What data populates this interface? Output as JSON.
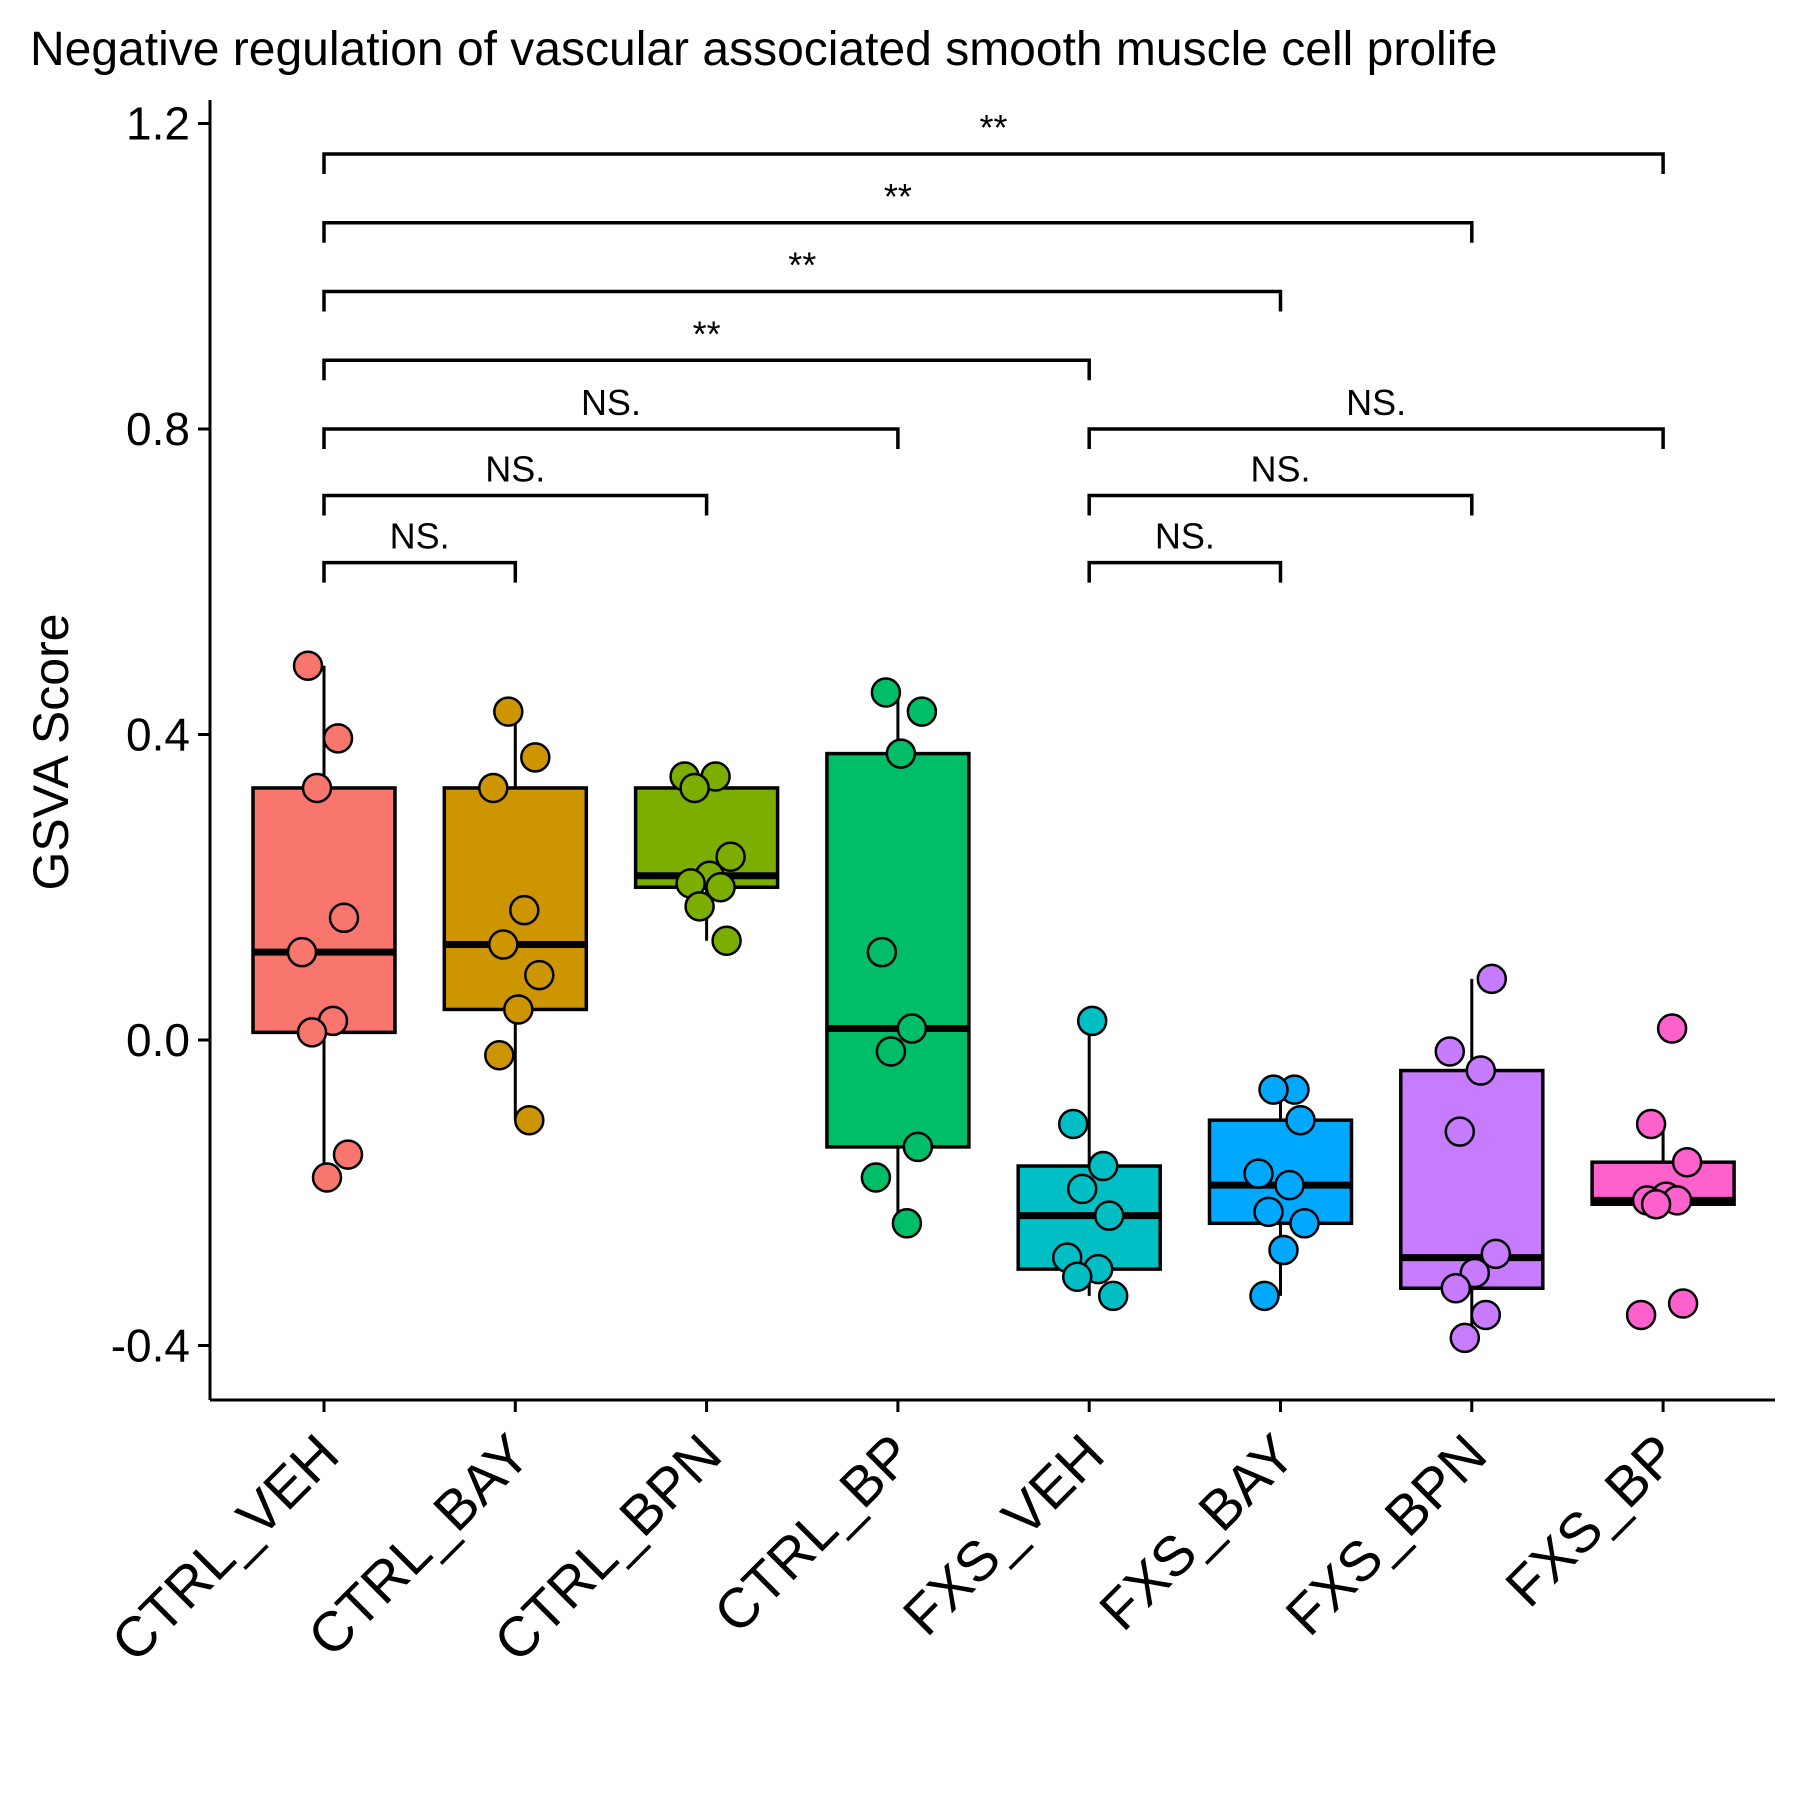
{
  "chart_data": {
    "type": "box",
    "title": "Negative regulation of vascular associated smooth muscle cell prolife",
    "ylabel": "GSVA Score",
    "xlabel": "",
    "ylim": [
      -0.47,
      1.2
    ],
    "yticks": [
      -0.4,
      0.0,
      0.4,
      0.8,
      1.2
    ],
    "ytick_labels": [
      "-0.4",
      "0.0",
      "0.4",
      "0.8",
      "1.2"
    ],
    "grid": false,
    "legend": "none",
    "categories": [
      "CTRL_VEH",
      "CTRL_BAY",
      "CTRL_BPN",
      "CTRL_BP",
      "FXS_VEH",
      "FXS_BAY",
      "FXS_BPN",
      "FXS_BP"
    ],
    "colors": [
      "#F8766D",
      "#CD9600",
      "#7CAE00",
      "#00BE67",
      "#00BFC4",
      "#00A9FF",
      "#C77CFF",
      "#FF61CC"
    ],
    "boxes": [
      {
        "name": "CTRL_VEH",
        "whisker_low": -0.18,
        "q1": 0.01,
        "median": 0.115,
        "q3": 0.33,
        "whisker_high": 0.49
      },
      {
        "name": "CTRL_BAY",
        "whisker_low": -0.105,
        "q1": 0.04,
        "median": 0.125,
        "q3": 0.33,
        "whisker_high": 0.43
      },
      {
        "name": "CTRL_BPN",
        "whisker_low": 0.13,
        "q1": 0.2,
        "median": 0.215,
        "q3": 0.33,
        "whisker_high": 0.345
      },
      {
        "name": "CTRL_BP",
        "whisker_low": -0.24,
        "q1": -0.14,
        "median": 0.015,
        "q3": 0.375,
        "whisker_high": 0.455
      },
      {
        "name": "FXS_VEH",
        "whisker_low": -0.335,
        "q1": -0.3,
        "median": -0.23,
        "q3": -0.165,
        "whisker_high": 0.025
      },
      {
        "name": "FXS_BAY",
        "whisker_low": -0.335,
        "q1": -0.24,
        "median": -0.19,
        "q3": -0.105,
        "whisker_high": -0.065
      },
      {
        "name": "FXS_BPN",
        "whisker_low": -0.39,
        "q1": -0.325,
        "median": -0.285,
        "q3": -0.04,
        "whisker_high": 0.08
      },
      {
        "name": "FXS_BP",
        "whisker_low": -0.215,
        "q1": -0.215,
        "median": -0.21,
        "q3": -0.16,
        "whisker_high": -0.11
      }
    ],
    "points": [
      [
        0.49,
        0.395,
        0.33,
        0.16,
        0.115,
        0.025,
        0.01,
        -0.15,
        -0.18
      ],
      [
        0.43,
        0.37,
        0.33,
        0.17,
        0.125,
        0.085,
        0.04,
        -0.02,
        -0.105
      ],
      [
        0.345,
        0.345,
        0.33,
        0.24,
        0.215,
        0.205,
        0.2,
        0.175,
        0.13
      ],
      [
        0.455,
        0.43,
        0.375,
        0.115,
        0.015,
        -0.015,
        -0.14,
        -0.18,
        -0.24
      ],
      [
        0.025,
        -0.11,
        -0.165,
        -0.195,
        -0.23,
        -0.285,
        -0.3,
        -0.31,
        -0.335
      ],
      [
        -0.065,
        -0.065,
        -0.105,
        -0.175,
        -0.19,
        -0.225,
        -0.24,
        -0.275,
        -0.335
      ],
      [
        0.08,
        -0.015,
        -0.04,
        -0.12,
        -0.28,
        -0.305,
        -0.325,
        -0.36,
        -0.39
      ],
      [
        0.015,
        -0.11,
        -0.16,
        -0.205,
        -0.21,
        -0.21,
        -0.215,
        -0.345,
        -0.36
      ]
    ],
    "annotations": [
      {
        "from": "CTRL_VEH",
        "to": "CTRL_BAY",
        "y": 0.625,
        "label": "NS."
      },
      {
        "from": "CTRL_VEH",
        "to": "CTRL_BPN",
        "y": 0.713,
        "label": "NS."
      },
      {
        "from": "CTRL_VEH",
        "to": "CTRL_BP",
        "y": 0.8,
        "label": "NS."
      },
      {
        "from": "CTRL_VEH",
        "to": "FXS_VEH",
        "y": 0.89,
        "label": "**"
      },
      {
        "from": "CTRL_VEH",
        "to": "FXS_BAY",
        "y": 0.98,
        "label": "**"
      },
      {
        "from": "CTRL_VEH",
        "to": "FXS_BPN",
        "y": 1.07,
        "label": "**"
      },
      {
        "from": "CTRL_VEH",
        "to": "FXS_BP",
        "y": 1.16,
        "label": "**"
      },
      {
        "from": "FXS_VEH",
        "to": "FXS_BAY",
        "y": 0.625,
        "label": "NS."
      },
      {
        "from": "FXS_VEH",
        "to": "FXS_BPN",
        "y": 0.713,
        "label": "NS."
      },
      {
        "from": "FXS_VEH",
        "to": "FXS_BP",
        "y": 0.8,
        "label": "NS."
      }
    ]
  }
}
